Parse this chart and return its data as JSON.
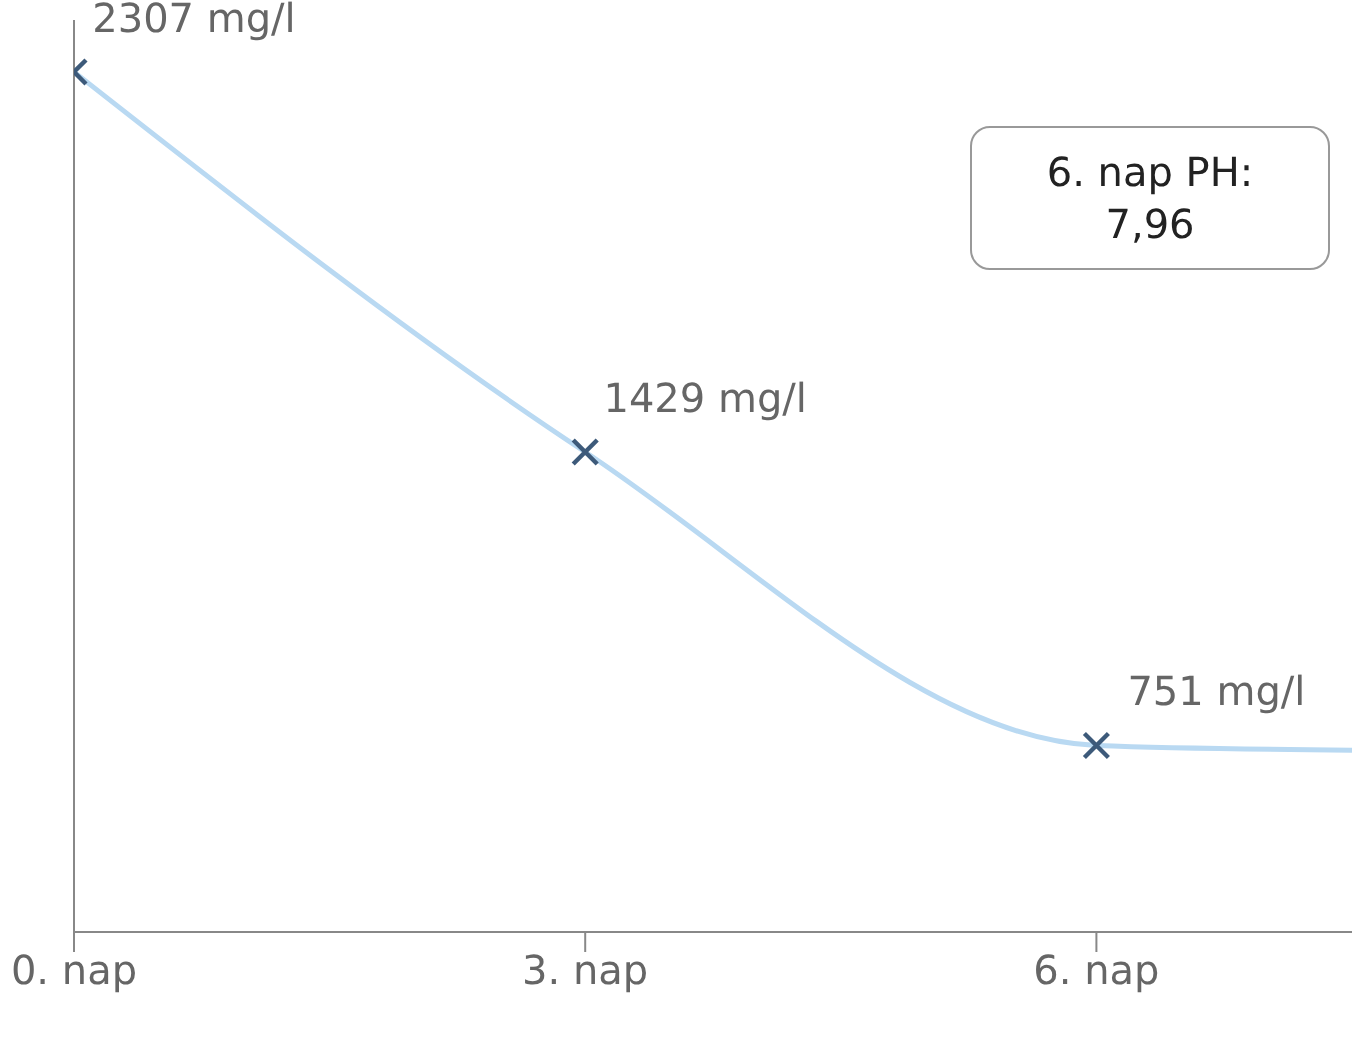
{
  "chart_data": {
    "type": "line",
    "x": [
      0,
      3,
      6,
      7.5
    ],
    "series": [
      {
        "color": "#3d5a7a",
        "values": [
          2307,
          1429,
          751,
          740
        ],
        "value_labels": [
          "2307 mg/l",
          "1429 mg/l",
          "751 mg/l",
          null
        ]
      }
    ],
    "xlim": [
      0,
      7.5
    ],
    "xticks": [
      {
        "value": 0,
        "label": "0. nap"
      },
      {
        "value": 3,
        "label": "3. nap"
      },
      {
        "value": 6,
        "label": "6. nap"
      }
    ],
    "tick_labels": "x",
    "marker": "cross",
    "line_style": "solid",
    "grid": false,
    "annotations": [
      "6. nap PH:\n7,96"
    ]
  }
}
